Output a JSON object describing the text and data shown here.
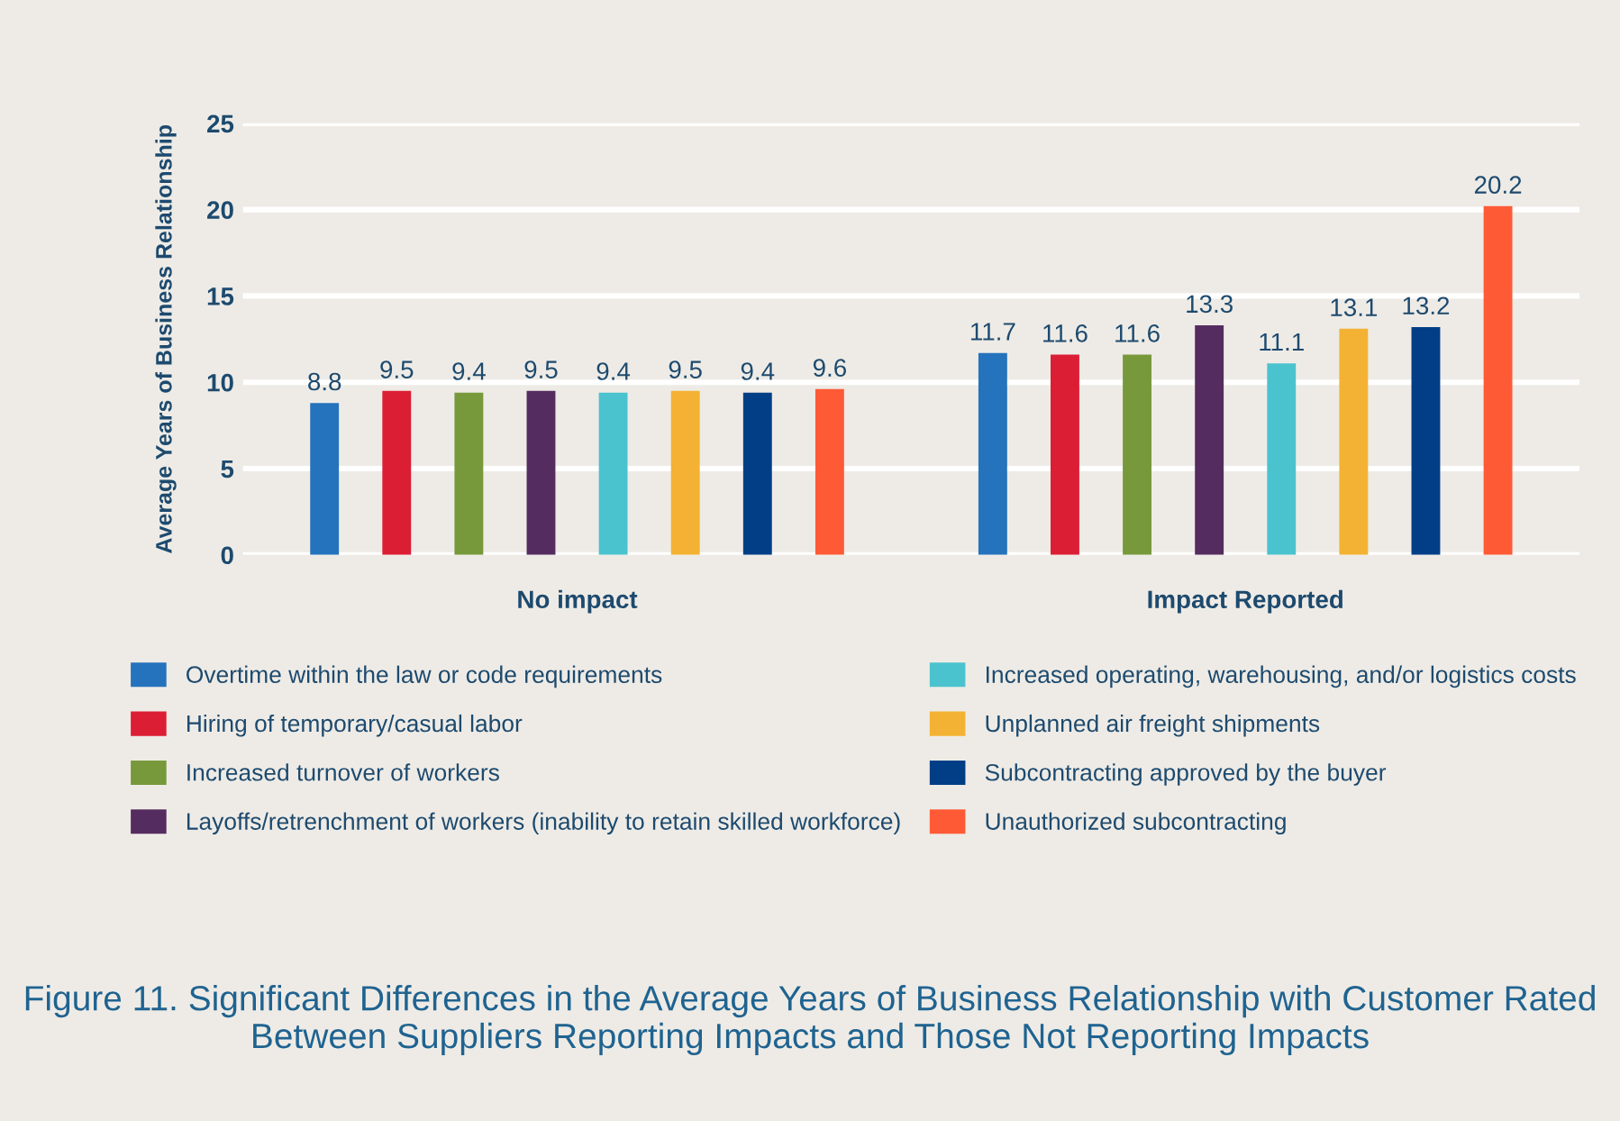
{
  "chart_data": {
    "type": "bar",
    "title": "Figure 11. Significant Differences in the Average Years of Business Relationship with Customer Rated Between Suppliers Reporting Impacts and Those Not Reporting Impacts",
    "ylabel": "Average Years of Business Relationship",
    "categories": [
      "No impact",
      "Impact Reported"
    ],
    "series": [
      {
        "name": "Overtime within the law or code requirements",
        "color": "#2573bc",
        "values": [
          8.8,
          11.7
        ]
      },
      {
        "name": "Hiring of temporary/casual labor",
        "color": "#dc1e35",
        "values": [
          9.5,
          11.6
        ]
      },
      {
        "name": "Increased turnover of workers",
        "color": "#77993b",
        "values": [
          9.4,
          11.6
        ]
      },
      {
        "name": "Layoffs/retrenchment of workers (inability to retain skilled workforce)",
        "color": "#552c5f",
        "values": [
          9.5,
          13.3
        ]
      },
      {
        "name": "Increased operating, warehousing, and/or logistics costs",
        "color": "#4bc3ce",
        "values": [
          9.4,
          11.1
        ]
      },
      {
        "name": "Unplanned air freight shipments",
        "color": "#f3b233",
        "values": [
          9.5,
          13.1
        ]
      },
      {
        "name": "Subcontracting approved by the buyer",
        "color": "#023e86",
        "values": [
          9.4,
          13.2
        ]
      },
      {
        "name": "Unauthorized subcontracting",
        "color": "#ff5a36",
        "values": [
          9.6,
          20.2
        ]
      }
    ],
    "ylim": [
      0,
      25
    ],
    "yticks": [
      0,
      5,
      10,
      15,
      20,
      25
    ],
    "grid": "y",
    "legend": "bottom",
    "data_labels": true
  }
}
